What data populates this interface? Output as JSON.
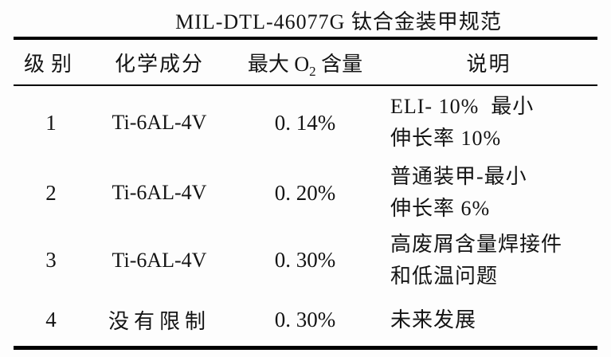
{
  "title": "MIL-DTL-46077G 钛合金装甲规范",
  "colors": {
    "background": "#fdfdfd",
    "text": "#141414",
    "rule": "#000000"
  },
  "table": {
    "header": {
      "grade": "级别",
      "composition": "化学成分",
      "o2_prefix": "最大 O",
      "o2_sub": "2",
      "o2_suffix": " 含量",
      "description": "说明"
    },
    "rows": [
      {
        "grade": "1",
        "composition": "Ti-6AL-4V",
        "max_o2": "0. 14%",
        "description_lines": [
          "ELI- 10%  最小",
          "伸长率 10%"
        ]
      },
      {
        "grade": "2",
        "composition": "Ti-6AL-4V",
        "max_o2": "0. 20%",
        "description_lines": [
          "普通装甲-最小",
          "伸长率 6%"
        ]
      },
      {
        "grade": "3",
        "composition": "Ti-6AL-4V",
        "max_o2": "0. 30%",
        "description_lines": [
          "高废屑含量焊接件",
          "和低温问题"
        ]
      },
      {
        "grade": "4",
        "composition": "没有限制",
        "max_o2": "0. 30%",
        "description_lines": [
          "未来发展"
        ]
      }
    ]
  }
}
